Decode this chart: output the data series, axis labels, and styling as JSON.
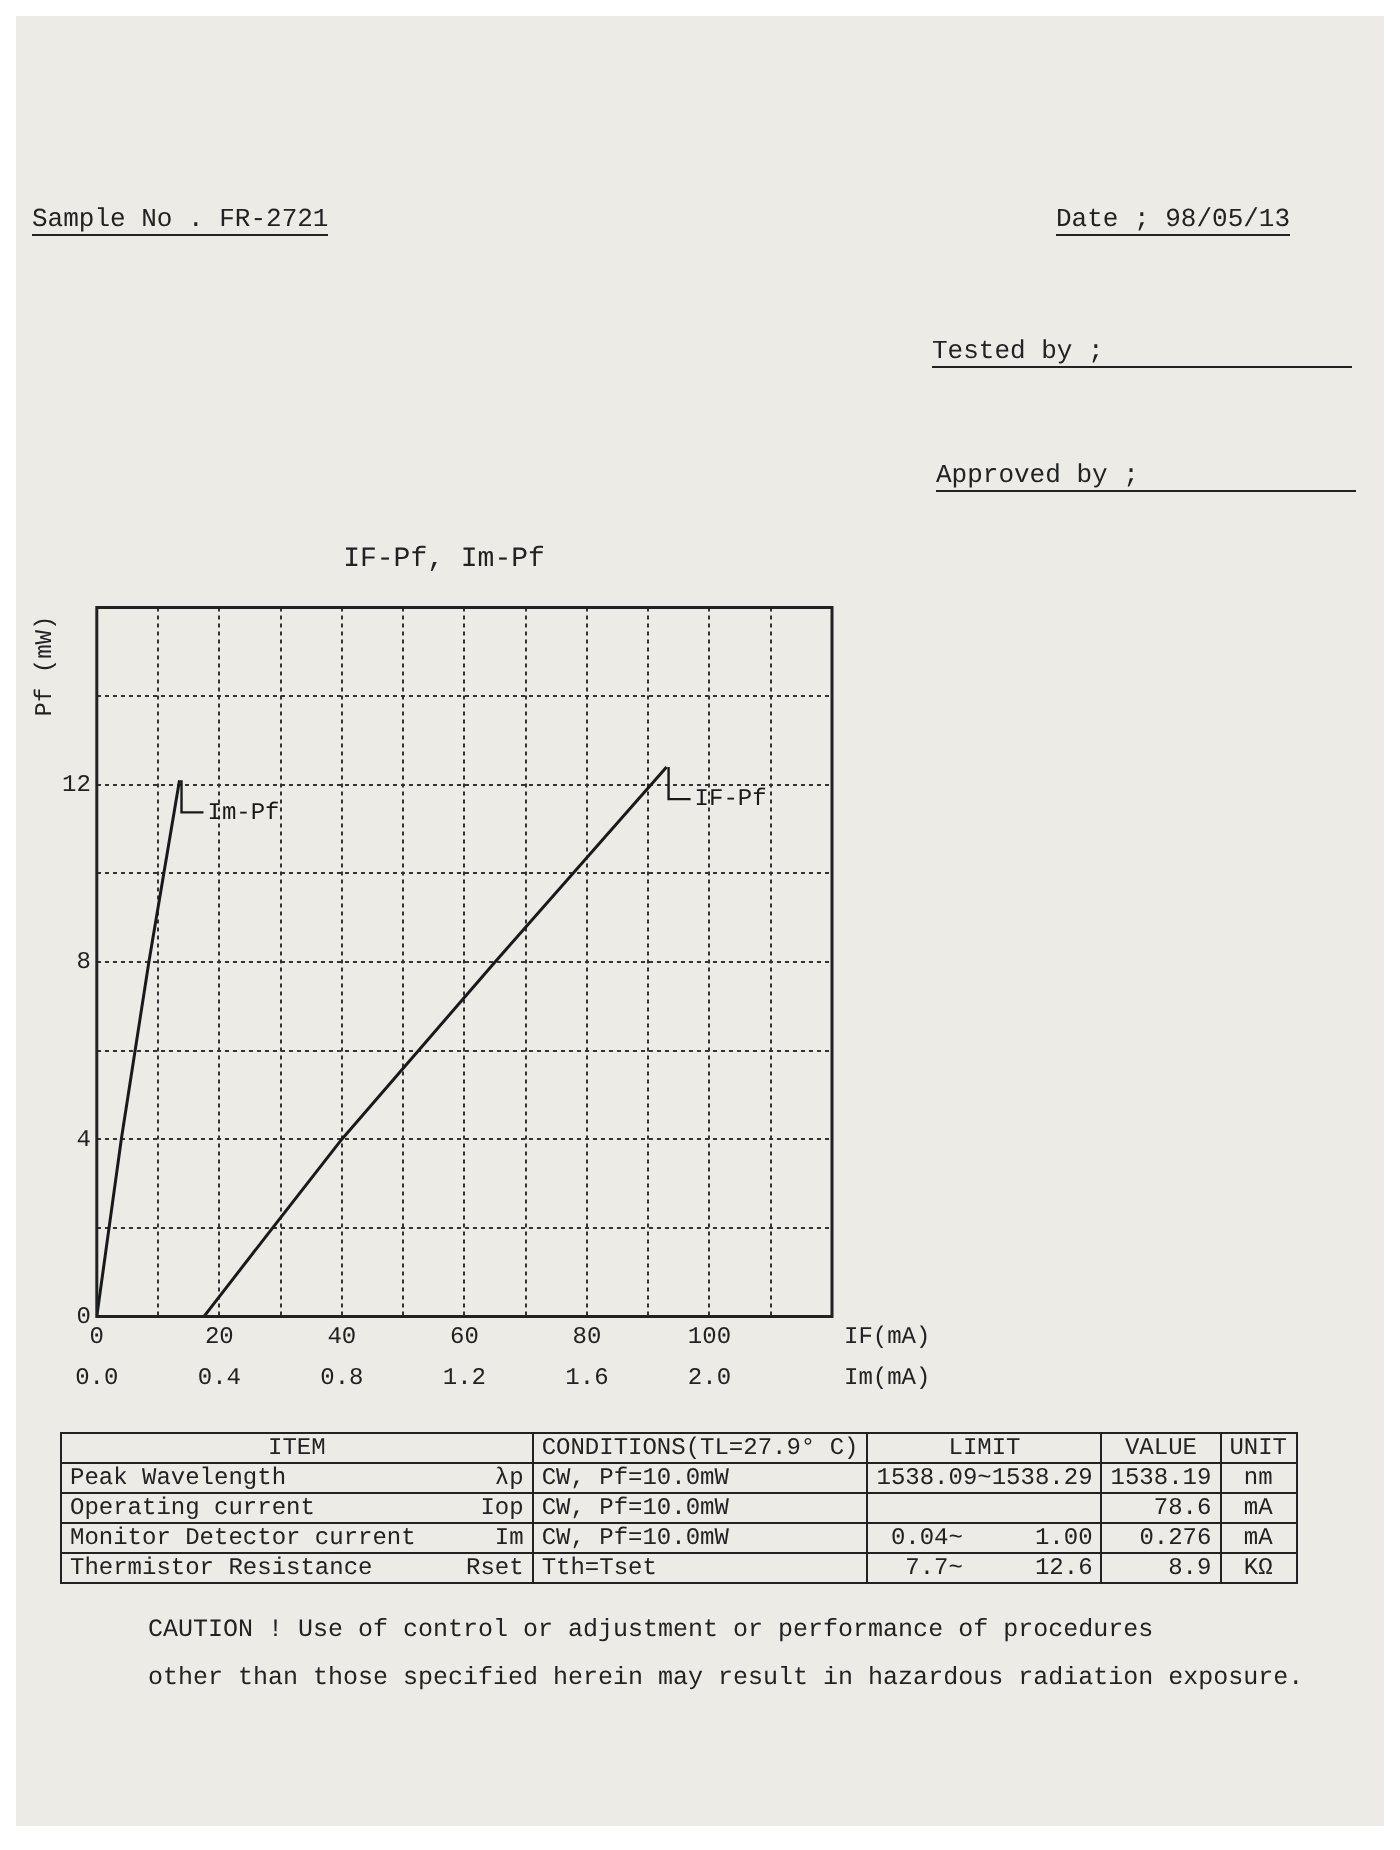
{
  "chart_data": {
    "type": "line",
    "title": "IF-Pf, Im-Pf",
    "xlabel": "IF(mA)",
    "x2label": "Im(mA)",
    "ylabel": "Pf (mW)",
    "xlim": [
      0,
      120
    ],
    "xticks": [
      0,
      {
        "value": 10,
        "label": null
      },
      20,
      {
        "value": 30,
        "label": null
      },
      40,
      {
        "value": 50,
        "label": null
      },
      60,
      {
        "value": 70,
        "label": null
      },
      80,
      {
        "value": 90,
        "label": null
      },
      100,
      {
        "value": 110,
        "label": null
      },
      {
        "value": 120,
        "label": null
      }
    ],
    "x2lim": [
      0,
      2.4
    ],
    "x2ticks": [
      {
        "value": 0,
        "label": "0.0"
      },
      0.4,
      0.8,
      1.2,
      1.6,
      {
        "value": 2,
        "label": "2.0"
      }
    ],
    "ylim": [
      0,
      16
    ],
    "yticks": [
      0,
      {
        "value": 2,
        "label": null
      },
      4,
      {
        "value": 6,
        "label": null
      },
      8,
      {
        "value": 10,
        "label": null
      },
      12,
      {
        "value": 14,
        "label": null
      },
      {
        "value": 16,
        "label": null
      }
    ],
    "grid": true,
    "legend": "top",
    "marker": "none",
    "line_style": "solid",
    "series": [
      {
        "name": "Im-Pf",
        "color": "#1a1a1a",
        "axis": "x2",
        "x": [
          0,
          0.08,
          0.17,
          0.27
        ],
        "values": [
          0,
          4,
          8,
          12.1
        ]
      },
      {
        "name": "IF-Pf",
        "color": "#1a1a1a",
        "x": [
          14,
          17.5,
          28.7,
          40,
          65,
          93
        ],
        "values": [
          0,
          0,
          2,
          4,
          8,
          12.4
        ]
      }
    ],
    "annotations": [
      "Sample No . FR-2721",
      "Date ; 98/05/13",
      "Tested by ;",
      "Approved by ;",
      "ITEM",
      "CONDITIONS(TL=27.9° C)",
      "LIMIT",
      "VALUE",
      "UNIT",
      "Peak Wavelength",
      "λp",
      "CW, Pf=10.0mW",
      "1538.09~1538.29",
      "1538.19",
      "nm",
      "Operating current",
      "Iop",
      "CW, Pf=10.0mW",
      null,
      "78.6",
      "mA",
      "Monitor Detector current",
      "Im",
      "CW, Pf=10.0mW",
      "0.04~     1.00",
      "0.276",
      "mA",
      "Thermistor Resistance",
      "Rset",
      "Tth=Tset",
      "7.7~     12.6",
      "8.9",
      "KΩ",
      "CAUTION ! Use of control or adjustment or performance of procedures",
      "other than those specified herein may result in hazardous radiation exposure."
    ]
  }
}
